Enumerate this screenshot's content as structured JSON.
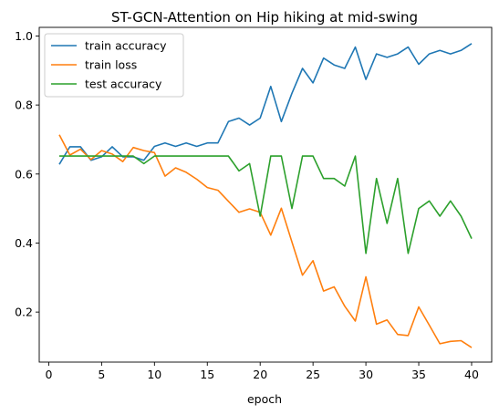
{
  "chart_data": {
    "type": "line",
    "title": "ST-GCN-Attention on Hip hiking at mid-swing",
    "xlabel": "epoch",
    "ylabel": "",
    "xlim": [
      -0.9,
      41.9
    ],
    "ylim": [
      0.055,
      1.025
    ],
    "xticks": [
      0,
      5,
      10,
      15,
      20,
      25,
      30,
      35,
      40
    ],
    "yticks": [
      0.2,
      0.4,
      0.6,
      0.8,
      1.0
    ],
    "ytick_labels": [
      "0.2",
      "0.4",
      "0.6",
      "0.8",
      "1.0"
    ],
    "grid": false,
    "legend_position": "upper-left",
    "x": [
      1,
      2,
      3,
      4,
      5,
      6,
      7,
      8,
      9,
      10,
      11,
      12,
      13,
      14,
      15,
      16,
      17,
      18,
      19,
      20,
      21,
      22,
      23,
      24,
      25,
      26,
      27,
      28,
      29,
      30,
      31,
      32,
      33,
      34,
      35,
      36,
      37,
      38,
      39,
      40
    ],
    "series": [
      {
        "name": "train accuracy",
        "color": "#1f77b4",
        "values": [
          0.628,
          0.679,
          0.679,
          0.64,
          0.65,
          0.679,
          0.65,
          0.65,
          0.64,
          0.68,
          0.69,
          0.68,
          0.69,
          0.68,
          0.69,
          0.69,
          0.752,
          0.762,
          0.742,
          0.762,
          0.854,
          0.752,
          0.834,
          0.906,
          0.864,
          0.936,
          0.916,
          0.906,
          0.968,
          0.874,
          0.948,
          0.938,
          0.948,
          0.968,
          0.918,
          0.948,
          0.958,
          0.948,
          0.958,
          0.978
        ]
      },
      {
        "name": "train loss",
        "color": "#ff7f0e",
        "values": [
          0.714,
          0.655,
          0.672,
          0.642,
          0.668,
          0.658,
          0.636,
          0.677,
          0.668,
          0.662,
          0.594,
          0.618,
          0.605,
          0.585,
          0.561,
          0.553,
          0.521,
          0.489,
          0.499,
          0.489,
          0.423,
          0.501,
          0.403,
          0.307,
          0.349,
          0.261,
          0.273,
          0.217,
          0.174,
          0.302,
          0.165,
          0.177,
          0.135,
          0.132,
          0.215,
          0.162,
          0.108,
          0.115,
          0.117,
          0.097
        ]
      },
      {
        "name": "test accuracy",
        "color": "#2ca02c",
        "values": [
          0.652,
          0.652,
          0.652,
          0.652,
          0.652,
          0.652,
          0.652,
          0.652,
          0.63,
          0.652,
          0.652,
          0.652,
          0.652,
          0.652,
          0.652,
          0.652,
          0.652,
          0.609,
          0.63,
          0.478,
          0.652,
          0.652,
          0.5,
          0.652,
          0.652,
          0.587,
          0.587,
          0.565,
          0.652,
          0.37,
          0.587,
          0.457,
          0.587,
          0.37,
          0.5,
          0.522,
          0.478,
          0.522,
          0.478,
          0.413
        ]
      }
    ]
  }
}
